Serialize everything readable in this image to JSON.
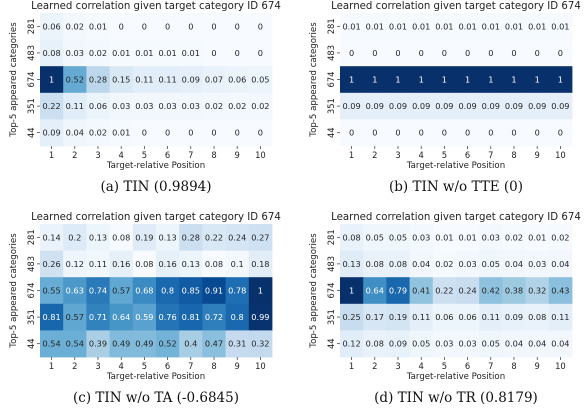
{
  "chart_data": [
    {
      "type": "heatmap",
      "title": "Learned correlation given target category ID 674",
      "xlabel": "Target-relative Position",
      "ylabel": "Top-5 appeared categories",
      "x": [
        "1",
        "2",
        "3",
        "4",
        "5",
        "6",
        "7",
        "8",
        "9",
        "10"
      ],
      "y": [
        "281",
        "483",
        "674",
        "351",
        "44"
      ],
      "values": [
        [
          0.06,
          0.02,
          0.01,
          0,
          0,
          0,
          0,
          0,
          0,
          0
        ],
        [
          0.08,
          0.03,
          0.02,
          0.01,
          0.01,
          0.01,
          0.01,
          0,
          0,
          0
        ],
        [
          1,
          0.52,
          0.28,
          0.15,
          0.11,
          0.11,
          0.09,
          0.07,
          0.06,
          0.05
        ],
        [
          0.22,
          0.11,
          0.06,
          0.03,
          0.03,
          0.03,
          0.03,
          0.02,
          0.02,
          0.02
        ],
        [
          0.09,
          0.04,
          0.02,
          0.01,
          0,
          0,
          0,
          0,
          0,
          0
        ]
      ],
      "caption": "(a)  TIN (0.9894)"
    },
    {
      "type": "heatmap",
      "title": "Learned correlation given target category ID 674",
      "xlabel": "Target-relative Position",
      "ylabel": "Top-5 appeared categories",
      "x": [
        "1",
        "2",
        "3",
        "4",
        "5",
        "6",
        "7",
        "8",
        "9",
        "10"
      ],
      "y": [
        "281",
        "483",
        "674",
        "351",
        "44"
      ],
      "values": [
        [
          0.01,
          0.01,
          0.01,
          0.01,
          0.01,
          0.01,
          0.01,
          0.01,
          0.01,
          0.01
        ],
        [
          0,
          0,
          0,
          0,
          0,
          0,
          0,
          0,
          0,
          0
        ],
        [
          1,
          1,
          1,
          1,
          1,
          1,
          1,
          1,
          1,
          1
        ],
        [
          0.09,
          0.09,
          0.09,
          0.09,
          0.09,
          0.09,
          0.09,
          0.09,
          0.09,
          0.09
        ],
        [
          0,
          0,
          0,
          0,
          0,
          0,
          0,
          0,
          0,
          0
        ]
      ],
      "caption": "(b)  TIN w/o TTE (0)"
    },
    {
      "type": "heatmap",
      "title": "Learned correlation given target category ID 674",
      "xlabel": "Target-relative Position",
      "ylabel": "Top-5 appeared categories",
      "x": [
        "1",
        "2",
        "3",
        "4",
        "5",
        "6",
        "7",
        "8",
        "9",
        "10"
      ],
      "y": [
        "281",
        "483",
        "674",
        "351",
        "44"
      ],
      "values": [
        [
          0.14,
          0.2,
          0.13,
          0.08,
          0.19,
          0.13,
          0.28,
          0.22,
          0.24,
          0.27
        ],
        [
          0.26,
          0.12,
          0.11,
          0.16,
          0.08,
          0.16,
          0.13,
          0.08,
          0.1,
          0.18
        ],
        [
          0.55,
          0.63,
          0.74,
          0.57,
          0.68,
          0.8,
          0.85,
          0.91,
          0.78,
          1
        ],
        [
          0.81,
          0.57,
          0.71,
          0.64,
          0.59,
          0.76,
          0.81,
          0.72,
          0.8,
          0.99
        ],
        [
          0.54,
          0.54,
          0.39,
          0.49,
          0.49,
          0.52,
          0.4,
          0.47,
          0.31,
          0.32
        ]
      ],
      "caption": "(c)  TIN w/o TA (-0.6845)"
    },
    {
      "type": "heatmap",
      "title": "Learned correlation given target category ID 674",
      "xlabel": "Target-relative Position",
      "ylabel": "Top-5 appeared categories",
      "x": [
        "1",
        "2",
        "3",
        "4",
        "5",
        "6",
        "7",
        "8",
        "9",
        "10"
      ],
      "y": [
        "281",
        "483",
        "674",
        "351",
        "44"
      ],
      "values": [
        [
          0.08,
          0.05,
          0.05,
          0.03,
          0.01,
          0.01,
          0.03,
          0.02,
          0.01,
          0.02
        ],
        [
          0.13,
          0.08,
          0.08,
          0.04,
          0.02,
          0.03,
          0.05,
          0.04,
          0.03,
          0.04
        ],
        [
          1,
          0.64,
          0.79,
          0.41,
          0.22,
          0.24,
          0.42,
          0.38,
          0.32,
          0.43
        ],
        [
          0.25,
          0.17,
          0.19,
          0.11,
          0.06,
          0.06,
          0.11,
          0.09,
          0.08,
          0.11
        ],
        [
          0.12,
          0.08,
          0.09,
          0.05,
          0.03,
          0.03,
          0.05,
          0.04,
          0.04,
          0.04
        ]
      ],
      "caption": "(d)  TIN w/o TR (0.8179)"
    }
  ]
}
